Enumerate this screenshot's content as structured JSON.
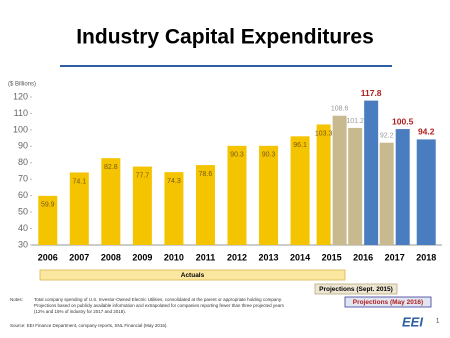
{
  "chart_data": {
    "type": "bar",
    "title": "Industry Capital Expenditures",
    "y_label": "($ Billions)",
    "categories": [
      "2006",
      "2007",
      "2008",
      "2009",
      "2010",
      "2011",
      "2012",
      "2013",
      "2014",
      "2015",
      "2016",
      "2017",
      "2018"
    ],
    "series": [
      {
        "name": "Actuals",
        "color": "#f5c400",
        "values": [
          59.9,
          74.1,
          82.8,
          77.7,
          74.3,
          78.6,
          90.3,
          90.3,
          96.1,
          103.3,
          null,
          null,
          null
        ]
      },
      {
        "name": "Projections (Sept. 2015)",
        "color": "#c9b98e",
        "values": [
          null,
          null,
          null,
          null,
          null,
          null,
          null,
          null,
          null,
          108.6,
          101.2,
          92.2,
          null
        ]
      },
      {
        "name": "Projections (May 2016)",
        "color": "#4a7cc0",
        "values": [
          null,
          null,
          null,
          null,
          null,
          null,
          null,
          null,
          null,
          null,
          117.8,
          100.5,
          94.2
        ]
      }
    ],
    "ylim": [
      30,
      120
    ],
    "yticks": [
      30,
      40,
      50,
      60,
      70,
      80,
      90,
      100,
      110,
      120
    ],
    "grid": false,
    "notes_label": "Notes:",
    "notes": [
      "Total company spending of U.S. Investor-Owned Electric Utilities, consolidated at the parent or appropriate holding company.",
      "Projections based on publicly available information and extrapolated for companies reporting fewer than three projected years",
      "(12% and 15% of industry for 2017 and 2018)."
    ],
    "source": "Source: EEI Finance Department, company reports, SNL Financial (May 2016).",
    "logo": "EEI",
    "page": "1"
  }
}
